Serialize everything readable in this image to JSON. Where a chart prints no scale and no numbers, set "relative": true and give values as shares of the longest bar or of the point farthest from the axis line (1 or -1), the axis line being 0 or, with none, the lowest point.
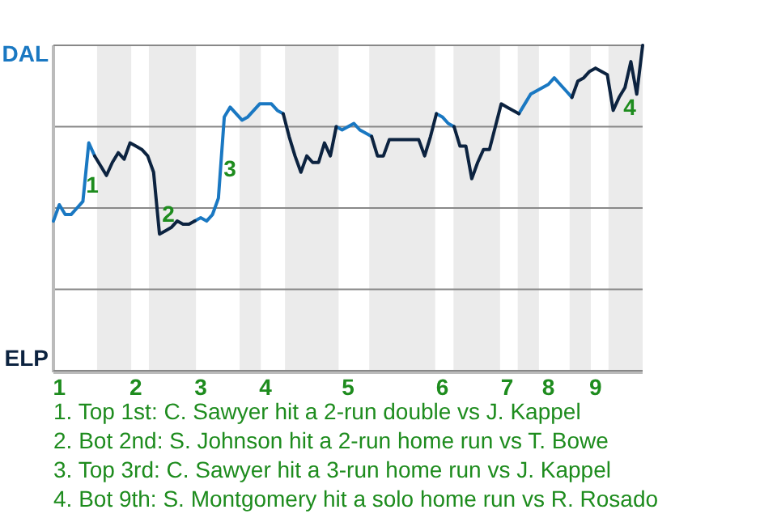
{
  "chart_data": {
    "type": "line",
    "relative": true,
    "categories": [
      null,
      "1",
      null,
      null,
      null,
      null,
      null,
      null,
      null,
      null,
      null,
      null,
      null,
      null,
      "2",
      null,
      null,
      null,
      null,
      null,
      null,
      null,
      null,
      null,
      null,
      "3",
      null,
      null,
      null,
      null,
      null,
      null,
      null,
      null,
      null,
      null,
      "4",
      null,
      null,
      null,
      null,
      null,
      null,
      null,
      null,
      null,
      null,
      null,
      null,
      null,
      "5",
      null,
      null,
      null,
      null,
      null,
      null,
      null,
      null,
      null,
      null,
      null,
      null,
      null,
      null,
      null,
      "6",
      null,
      null,
      null,
      null,
      null,
      null,
      null,
      null,
      null,
      null,
      "7",
      null,
      null,
      null,
      null,
      null,
      null,
      "8",
      null,
      null,
      null,
      null,
      null,
      null,
      null,
      "9",
      null,
      null,
      null,
      null,
      null,
      null,
      null,
      null
    ],
    "grid": "y",
    "marker": "none",
    "line_style": "solid",
    "series": [
      {
        "color": "#1a78c2",
        "values": [
          0.46,
          0.51,
          0.48,
          0.48,
          0.5,
          0.52,
          0.7,
          0.66,
          null,
          null,
          null,
          null,
          null,
          null,
          null,
          null,
          null,
          null,
          null,
          null,
          null,
          null,
          null,
          null,
          0.46,
          0.47,
          0.46,
          0.48,
          0.53,
          0.78,
          0.81,
          0.79,
          0.77,
          0.78,
          0.8,
          0.82,
          0.82,
          0.82,
          0.8,
          0.79,
          null,
          null,
          null,
          null,
          null,
          null,
          null,
          null,
          0.75,
          0.74,
          0.75,
          0.76,
          0.74,
          0.73,
          0.72,
          null,
          null,
          null,
          null,
          null,
          null,
          null,
          null,
          null,
          null,
          0.79,
          0.78,
          0.76,
          0.75,
          null,
          null,
          null,
          null,
          null,
          null,
          null,
          null,
          null,
          null,
          0.79,
          0.82,
          0.85,
          0.86,
          0.87,
          0.88,
          0.9,
          0.88,
          0.86,
          0.84,
          null,
          null,
          null,
          null,
          null,
          null,
          null,
          null,
          null,
          null,
          null,
          null
        ]
      },
      {
        "color": "#0c2340",
        "values": [
          null,
          null,
          null,
          null,
          null,
          null,
          null,
          0.66,
          0.63,
          0.6,
          0.64,
          0.67,
          0.65,
          0.7,
          0.69,
          0.68,
          0.66,
          0.61,
          0.42,
          0.43,
          0.44,
          0.46,
          0.45,
          0.45,
          0.46,
          null,
          null,
          null,
          null,
          null,
          null,
          null,
          null,
          null,
          null,
          null,
          null,
          null,
          null,
          0.79,
          0.72,
          0.66,
          0.61,
          0.66,
          0.64,
          0.64,
          0.7,
          0.66,
          0.75,
          null,
          null,
          null,
          null,
          null,
          0.72,
          0.66,
          0.66,
          0.71,
          0.71,
          0.71,
          0.71,
          0.71,
          0.71,
          0.66,
          0.72,
          0.79,
          null,
          null,
          0.75,
          0.69,
          0.69,
          0.59,
          0.64,
          0.68,
          0.68,
          0.75,
          0.82,
          0.81,
          0.8,
          0.79,
          null,
          null,
          null,
          null,
          null,
          null,
          null,
          null,
          0.84,
          0.89,
          0.9,
          0.92,
          0.93,
          0.92,
          0.91,
          0.8,
          0.84,
          0.87,
          0.95,
          0.85,
          1.0
        ]
      }
    ],
    "ref_lines": [
      {
        "axis": "y",
        "value": 1,
        "label": "DAL"
      },
      {
        "axis": "y",
        "value": 0,
        "label": "ELP"
      }
    ],
    "annotations": [
      "1",
      "2",
      "3",
      "4",
      "1. Top 1st: C. Sawyer hit a 2-run double vs J. Kappel",
      "2. Bot 2nd: S. Johnson hit a 2-run home run vs T. Bowe",
      "3. Top 3rd: C. Sawyer hit a 3-run home run vs J. Kappel",
      "4. Bot 9th: S. Montgomery hit a solo home run vs R. Rosado"
    ]
  }
}
